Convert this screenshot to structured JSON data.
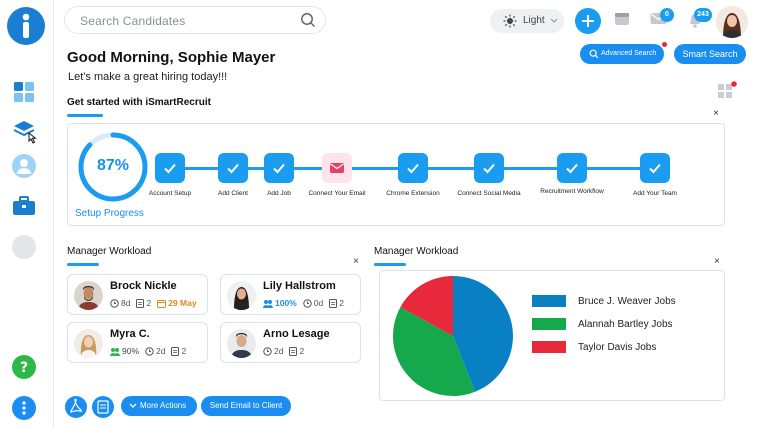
{
  "search": {
    "placeholder": "Search Candidates"
  },
  "topbar": {
    "theme_label": "Light",
    "mail_count": "0",
    "notification_count": "243"
  },
  "buttons": {
    "advanced_search": "Advanced Search",
    "smart_search": "Smart Search",
    "more_actions": "More Actions",
    "send_email": "Send Email to Client"
  },
  "greeting": {
    "title": "Good Morning, Sophie Mayer",
    "subtitle": "Let's make a great hiring today!!!",
    "get_started": "Get started with iSmartRecruit"
  },
  "setup": {
    "progress_text": "87%",
    "progress_value": 0.87,
    "label": "Setup Progress",
    "steps": [
      {
        "label": "Account Setup",
        "done": true
      },
      {
        "label": "Add Client",
        "done": true
      },
      {
        "label": "Add Job",
        "done": true
      },
      {
        "label": "Connect Your Email",
        "done": false
      },
      {
        "label": "Chrome Extension",
        "done": true
      },
      {
        "label": "Connect Social Media",
        "done": true
      },
      {
        "label": "Recruitment Workflow",
        "done": true
      },
      {
        "label": "Add Your Team",
        "done": true
      }
    ]
  },
  "workload_left": {
    "title": "Manager Workload",
    "close": "×",
    "people": [
      {
        "name": "Brock Nickle",
        "stat1": "8d",
        "stat2": "2",
        "stat3": "29 May"
      },
      {
        "name": "Lily Hallstrom",
        "stat1": "100%",
        "stat2": "0d",
        "stat3": "2"
      },
      {
        "name": "Myra C.",
        "stat1": "90%",
        "stat2": "2d",
        "stat3": "2"
      },
      {
        "name": "Arno Lesage",
        "stat1": "2d",
        "stat2": "2"
      }
    ]
  },
  "workload_right": {
    "title": "Manager Workload",
    "close": "×"
  },
  "setup_close": "×",
  "chart_data": {
    "type": "pie",
    "title": "Manager Workload",
    "series": [
      {
        "name": "Bruce J. Weaver Jobs",
        "value": 44,
        "color": "#0a80c4"
      },
      {
        "name": "Alannah Bartley Jobs",
        "value": 39,
        "color": "#16a84d"
      },
      {
        "name": "Taylor Davis Jobs",
        "value": 17,
        "color": "#e8283b"
      }
    ]
  },
  "colors": {
    "accent": "#1a9cf0",
    "pending_step": "#fde4ea",
    "email_icon": "#e8406a"
  }
}
